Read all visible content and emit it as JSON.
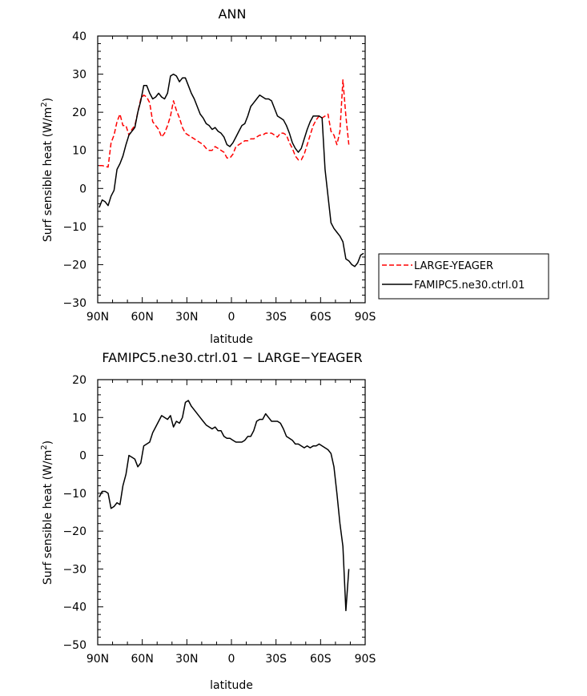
{
  "chart_data": [
    {
      "type": "line",
      "title": "ANN",
      "xlabel": "latitude",
      "ylabel": "Surf sensible heat (W/m",
      "ylabel_sup": "2",
      "ylabel_tail": ")",
      "xlim": [
        90,
        -90
      ],
      "ylim": [
        -30,
        40
      ],
      "x_ticks": [
        "90N",
        "60N",
        "30N",
        "0",
        "30S",
        "60S",
        "90S"
      ],
      "y_ticks": [
        "40",
        "30",
        "20",
        "10",
        "0",
        "−10",
        "−20",
        "−30"
      ],
      "legend_position": "right",
      "grid": false,
      "series": [
        {
          "name": "LARGE-YEAGER",
          "color": "#ff0000",
          "dash": "dashed",
          "x": [
            89,
            87,
            85,
            83,
            81,
            79,
            77,
            75,
            73,
            71,
            69,
            67,
            65,
            63,
            61,
            59,
            57,
            55,
            53,
            51,
            49,
            47,
            45,
            43,
            41,
            39,
            37,
            35,
            33,
            31,
            29,
            27,
            25,
            23,
            21,
            19,
            17,
            15,
            13,
            11,
            9,
            7,
            5,
            3,
            1,
            -1,
            -3,
            -5,
            -7,
            -9,
            -11,
            -13,
            -15,
            -17,
            -19,
            -21,
            -23,
            -25,
            -27,
            -29,
            -31,
            -33,
            -35,
            -37,
            -39,
            -41,
            -43,
            -45,
            -47,
            -49,
            -51,
            -53,
            -55,
            -57,
            -59,
            -61,
            -63,
            -65,
            -67,
            -69,
            -71,
            -73,
            -75,
            -77,
            -79
          ],
          "y": [
            6,
            6,
            5.8,
            5.6,
            12,
            14,
            17.5,
            19.5,
            16.5,
            16.5,
            14,
            15.5,
            16.5,
            20,
            23.5,
            24.5,
            24,
            22.5,
            17.5,
            16.5,
            15.5,
            13.5,
            14.5,
            16.5,
            19,
            23,
            20.5,
            18.5,
            16,
            14.5,
            14,
            13.5,
            13,
            12.5,
            12,
            11.5,
            10.5,
            10,
            10,
            11,
            10.5,
            10,
            9.5,
            8,
            8,
            9,
            11,
            11.5,
            12,
            12.5,
            12.5,
            13,
            13,
            13.5,
            14,
            14,
            14.5,
            14.5,
            14.5,
            14,
            13.5,
            14.5,
            14.5,
            14,
            12,
            10.5,
            8.5,
            7.5,
            7.5,
            9,
            11.5,
            14,
            16.5,
            18,
            19,
            18.5,
            19,
            19.5,
            15,
            14,
            11.5,
            15,
            28.5,
            19,
            11.5
          ]
        },
        {
          "name": "FAMIPC5.ne30.ctrl.01",
          "color": "#000000",
          "dash": "solid",
          "x": [
            89,
            87,
            85,
            83,
            81,
            79,
            77,
            75,
            73,
            71,
            69,
            67,
            65,
            63,
            61,
            59,
            57,
            55,
            53,
            51,
            49,
            47,
            45,
            43,
            41,
            39,
            37,
            35,
            33,
            31,
            29,
            27,
            25,
            23,
            21,
            19,
            17,
            15,
            13,
            11,
            9,
            7,
            5,
            3,
            1,
            -1,
            -3,
            -5,
            -7,
            -9,
            -11,
            -13,
            -15,
            -17,
            -19,
            -21,
            -23,
            -25,
            -27,
            -29,
            -31,
            -33,
            -35,
            -37,
            -39,
            -41,
            -43,
            -45,
            -47,
            -49,
            -51,
            -53,
            -55,
            -57,
            -59,
            -61,
            -63,
            -65,
            -67,
            -69,
            -71,
            -73,
            -75,
            -77,
            -79,
            -81,
            -83,
            -85,
            -87,
            -89
          ],
          "y": [
            -5,
            -3,
            -3.5,
            -4.5,
            -2,
            -0.5,
            5,
            6.5,
            8.5,
            11.5,
            14,
            15,
            16,
            20,
            23,
            27,
            27,
            25,
            23.5,
            24,
            25,
            24,
            23.5,
            25,
            29.5,
            30,
            29.5,
            28,
            29,
            29,
            27,
            25,
            23.5,
            21.5,
            19.5,
            18.5,
            17,
            16.5,
            15.5,
            16,
            15,
            14.5,
            13.5,
            11.5,
            11,
            12,
            13.5,
            15,
            16.5,
            17,
            19,
            21.5,
            22.5,
            23.5,
            24.5,
            24,
            23.5,
            23.5,
            23,
            21,
            19,
            18.5,
            18,
            16.5,
            14.5,
            12,
            10.5,
            9.5,
            10.5,
            13,
            15.5,
            17.5,
            19,
            19,
            19,
            18.5,
            5,
            -2,
            -9,
            -10.5,
            -11.5,
            -12.5,
            -14,
            -18.5,
            -19,
            -20,
            -20.5,
            -19.5,
            -17.5,
            -17
          ]
        }
      ]
    },
    {
      "type": "line",
      "title": "FAMIPC5.ne30.ctrl.01 − LARGE−YEAGER",
      "xlabel": "latitude",
      "ylabel": "Surf sensible heat (W/m",
      "ylabel_sup": "2",
      "ylabel_tail": ")",
      "xlim": [
        90,
        -90
      ],
      "ylim": [
        -50,
        20
      ],
      "x_ticks": [
        "90N",
        "60N",
        "30N",
        "0",
        "30S",
        "60S",
        "90S"
      ],
      "y_ticks": [
        "20",
        "10",
        "0",
        "−10",
        "−20",
        "−30",
        "−40",
        "−50"
      ],
      "grid": false,
      "series": [
        {
          "color": "#000000",
          "dash": "solid",
          "x": [
            89,
            87,
            85,
            83,
            81,
            79,
            77,
            75,
            73,
            71,
            69,
            67,
            65,
            63,
            61,
            59,
            57,
            55,
            53,
            51,
            49,
            47,
            45,
            43,
            41,
            39,
            37,
            35,
            33,
            31,
            29,
            27,
            25,
            23,
            21,
            19,
            17,
            15,
            13,
            11,
            9,
            7,
            5,
            3,
            1,
            -1,
            -3,
            -5,
            -7,
            -9,
            -11,
            -13,
            -15,
            -17,
            -19,
            -21,
            -23,
            -25,
            -27,
            -29,
            -31,
            -33,
            -35,
            -37,
            -39,
            -41,
            -43,
            -45,
            -47,
            -49,
            -51,
            -53,
            -55,
            -57,
            -59,
            -61,
            -63,
            -65,
            -67,
            -69,
            -71,
            -73,
            -75,
            -77,
            -79
          ],
          "y": [
            -11,
            -9.5,
            -9.5,
            -10,
            -14,
            -13.5,
            -12.5,
            -13,
            -8,
            -5,
            0,
            -0.5,
            -1,
            -3,
            -2,
            2.5,
            3,
            3.5,
            6,
            7.5,
            9,
            10.5,
            10,
            9.5,
            10.5,
            7.5,
            9,
            8.5,
            10,
            14,
            14.5,
            13,
            12,
            11,
            10,
            9,
            8,
            7.5,
            7,
            7.5,
            6.5,
            6.5,
            5,
            4.5,
            4.5,
            4,
            3.5,
            3.5,
            3.5,
            4,
            5,
            5,
            6.5,
            9,
            9.5,
            9.5,
            11,
            10,
            9,
            9,
            9,
            8.5,
            7,
            5,
            4.5,
            4,
            3,
            3,
            2.5,
            2,
            2.5,
            2,
            2.5,
            2.5,
            3,
            2.5,
            2,
            1.5,
            0.5,
            -3,
            -10,
            -18,
            -24,
            -41,
            -30
          ]
        }
      ]
    }
  ]
}
